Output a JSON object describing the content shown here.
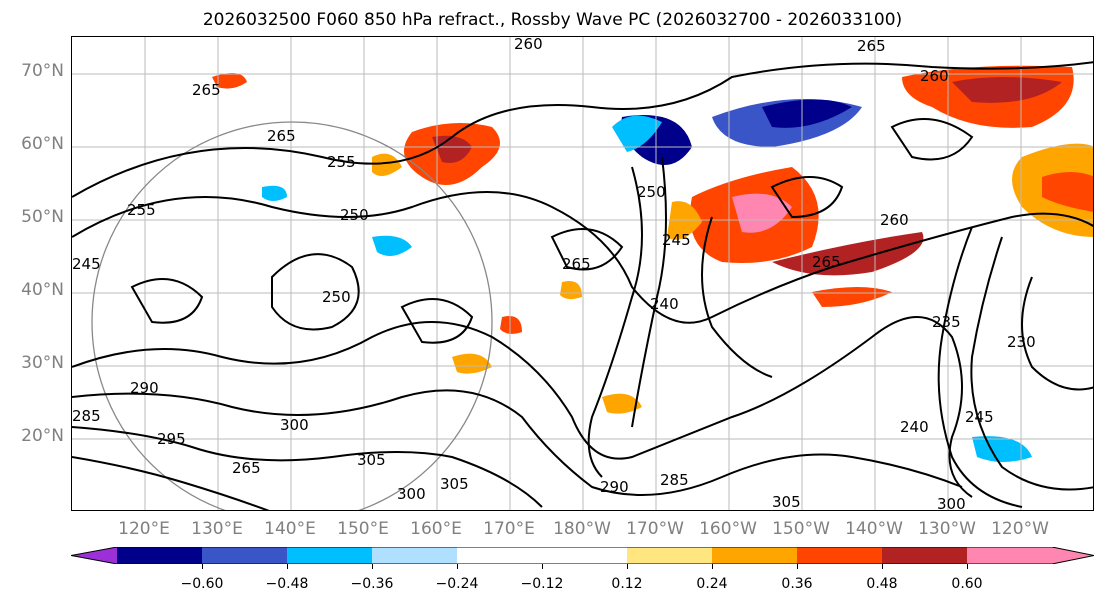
{
  "title": "2026032500 F060 850 hPa refract., Rossby Wave PC (2026032700 - 2026033100)",
  "lat_labels": [
    "70°N",
    "60°N",
    "50°N",
    "40°N",
    "30°N",
    "20°N"
  ],
  "lon_labels": [
    "120°E",
    "130°E",
    "140°E",
    "150°E",
    "160°E",
    "170°E",
    "180°W",
    "170°W",
    "160°W",
    "150°W",
    "140°W",
    "130°W",
    "120°W"
  ],
  "colorbar": {
    "ticks": [
      "−0.60",
      "−0.48",
      "−0.36",
      "−0.24",
      "−0.12",
      "0.12",
      "0.24",
      "0.36",
      "0.48",
      "0.60"
    ],
    "colors": [
      "#9b30d9",
      "#00008b",
      "#3a55c8",
      "#00bfff",
      "#b0e0ff",
      "#ffffff",
      "#ffe680",
      "#ffa500",
      "#ff4500",
      "#b22222",
      "#ff86b0"
    ]
  },
  "contour_labels": [
    "260",
    "265",
    "260",
    "265",
    "265",
    "255",
    "250",
    "255",
    "245",
    "250",
    "250",
    "265",
    "245",
    "240",
    "260",
    "265",
    "235",
    "230",
    "240",
    "245",
    "290",
    "285",
    "295",
    "300",
    "305",
    "300",
    "305",
    "290",
    "285",
    "300",
    "305",
    "265"
  ]
}
